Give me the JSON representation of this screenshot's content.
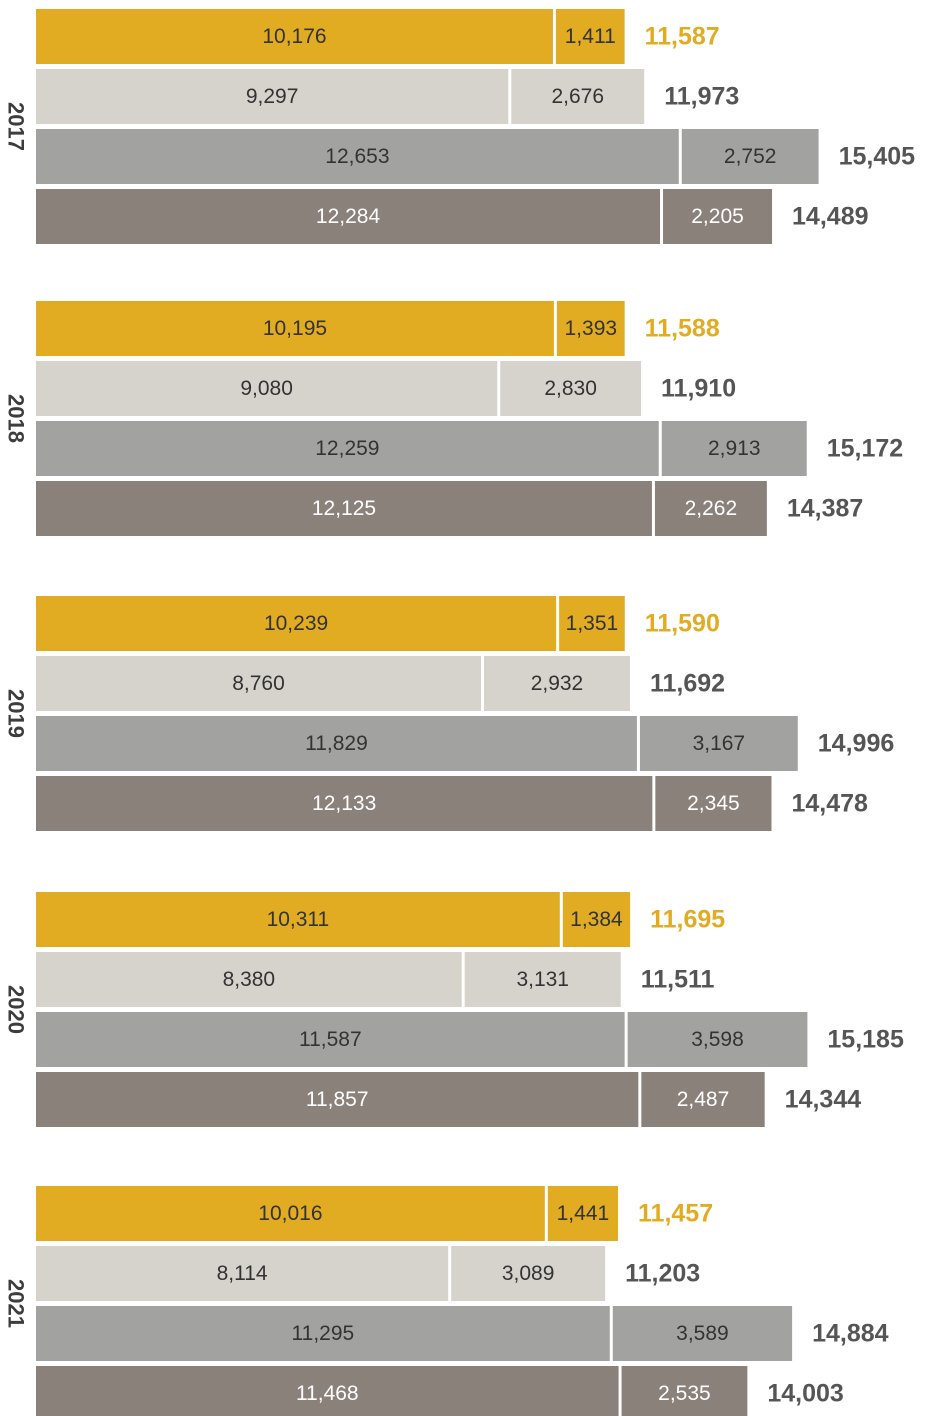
{
  "chart_data": {
    "type": "bar",
    "orientation": "horizontal",
    "stacked": true,
    "xlabel": "",
    "ylabel": "",
    "grid": false,
    "legend": "none",
    "xlim": [
      0,
      15405
    ],
    "groups": [
      {
        "year": "2017",
        "bars": [
          {
            "values": [
              10176,
              1411
            ],
            "labels": [
              "10,176",
              "1,411"
            ],
            "total": "11,587",
            "colors": [
              "#e1ac22",
              "#e1ac22"
            ],
            "text_colors": [
              "#333333",
              "#333333"
            ],
            "total_color": "#e1ac22"
          },
          {
            "values": [
              9297,
              2676
            ],
            "labels": [
              "9,297",
              "2,676"
            ],
            "total": "11,973",
            "colors": [
              "#d6d2cc",
              "#d6d2cc"
            ],
            "text_colors": [
              "#333333",
              "#333333"
            ],
            "total_color": "#555555"
          },
          {
            "values": [
              12653,
              2752
            ],
            "labels": [
              "12,653",
              "2,752"
            ],
            "total": "15,405",
            "colors": [
              "#a2a3a1",
              "#a2a3a1"
            ],
            "text_colors": [
              "#333333",
              "#333333"
            ],
            "total_color": "#555555"
          },
          {
            "values": [
              12284,
              2205
            ],
            "labels": [
              "12,284",
              "2,205"
            ],
            "total": "14,489",
            "colors": [
              "#8b817b",
              "#8b817b"
            ],
            "text_colors": [
              "#ffffff",
              "#ffffff"
            ],
            "total_color": "#555555"
          }
        ]
      },
      {
        "year": "2018",
        "bars": [
          {
            "values": [
              10195,
              1393
            ],
            "labels": [
              "10,195",
              "1,393"
            ],
            "total": "11,588",
            "colors": [
              "#e1ac22",
              "#e1ac22"
            ],
            "text_colors": [
              "#333333",
              "#333333"
            ],
            "total_color": "#e1ac22"
          },
          {
            "values": [
              9080,
              2830
            ],
            "labels": [
              "9,080",
              "2,830"
            ],
            "total": "11,910",
            "colors": [
              "#d6d2cc",
              "#d6d2cc"
            ],
            "text_colors": [
              "#333333",
              "#333333"
            ],
            "total_color": "#555555"
          },
          {
            "values": [
              12259,
              2913
            ],
            "labels": [
              "12,259",
              "2,913"
            ],
            "total": "15,172",
            "colors": [
              "#a2a3a1",
              "#a2a3a1"
            ],
            "text_colors": [
              "#333333",
              "#333333"
            ],
            "total_color": "#555555"
          },
          {
            "values": [
              12125,
              2262
            ],
            "labels": [
              "12,125",
              "2,262"
            ],
            "total": "14,387",
            "colors": [
              "#8b817b",
              "#8b817b"
            ],
            "text_colors": [
              "#ffffff",
              "#ffffff"
            ],
            "total_color": "#555555"
          }
        ]
      },
      {
        "year": "2019",
        "bars": [
          {
            "values": [
              10239,
              1351
            ],
            "labels": [
              "10,239",
              "1,351"
            ],
            "total": "11,590",
            "colors": [
              "#e1ac22",
              "#e1ac22"
            ],
            "text_colors": [
              "#333333",
              "#333333"
            ],
            "total_color": "#e1ac22"
          },
          {
            "values": [
              8760,
              2932
            ],
            "labels": [
              "8,760",
              "2,932"
            ],
            "total": "11,692",
            "colors": [
              "#d6d2cc",
              "#d6d2cc"
            ],
            "text_colors": [
              "#333333",
              "#333333"
            ],
            "total_color": "#555555"
          },
          {
            "values": [
              11829,
              3167
            ],
            "labels": [
              "11,829",
              "3,167"
            ],
            "total": "14,996",
            "colors": [
              "#a2a3a1",
              "#a2a3a1"
            ],
            "text_colors": [
              "#333333",
              "#333333"
            ],
            "total_color": "#555555"
          },
          {
            "values": [
              12133,
              2345
            ],
            "labels": [
              "12,133",
              "2,345"
            ],
            "total": "14,478",
            "colors": [
              "#8b817b",
              "#8b817b"
            ],
            "text_colors": [
              "#ffffff",
              "#ffffff"
            ],
            "total_color": "#555555"
          }
        ]
      },
      {
        "year": "2020",
        "bars": [
          {
            "values": [
              10311,
              1384
            ],
            "labels": [
              "10,311",
              "1,384"
            ],
            "total": "11,695",
            "colors": [
              "#e1ac22",
              "#e1ac22"
            ],
            "text_colors": [
              "#333333",
              "#333333"
            ],
            "total_color": "#e1ac22"
          },
          {
            "values": [
              8380,
              3131
            ],
            "labels": [
              "8,380",
              "3,131"
            ],
            "total": "11,511",
            "colors": [
              "#d6d2cc",
              "#d6d2cc"
            ],
            "text_colors": [
              "#333333",
              "#333333"
            ],
            "total_color": "#555555"
          },
          {
            "values": [
              11587,
              3598
            ],
            "labels": [
              "11,587",
              "3,598"
            ],
            "total": "15,185",
            "colors": [
              "#a2a3a1",
              "#a2a3a1"
            ],
            "text_colors": [
              "#333333",
              "#333333"
            ],
            "total_color": "#555555"
          },
          {
            "values": [
              11857,
              2487
            ],
            "labels": [
              "11,857",
              "2,487"
            ],
            "total": "14,344",
            "colors": [
              "#8b817b",
              "#8b817b"
            ],
            "text_colors": [
              "#ffffff",
              "#ffffff"
            ],
            "total_color": "#555555"
          }
        ]
      },
      {
        "year": "2021",
        "bars": [
          {
            "values": [
              10016,
              1441
            ],
            "labels": [
              "10,016",
              "1,441"
            ],
            "total": "11,457",
            "colors": [
              "#e1ac22",
              "#e1ac22"
            ],
            "text_colors": [
              "#333333",
              "#333333"
            ],
            "total_color": "#e1ac22"
          },
          {
            "values": [
              8114,
              3089
            ],
            "labels": [
              "8,114",
              "3,089"
            ],
            "total": "11,203",
            "colors": [
              "#d6d2cc",
              "#d6d2cc"
            ],
            "text_colors": [
              "#333333",
              "#333333"
            ],
            "total_color": "#555555"
          },
          {
            "values": [
              11295,
              3589
            ],
            "labels": [
              "11,295",
              "3,589"
            ],
            "total": "14,884",
            "colors": [
              "#a2a3a1",
              "#a2a3a1"
            ],
            "text_colors": [
              "#333333",
              "#333333"
            ],
            "total_color": "#555555"
          },
          {
            "values": [
              11468,
              2535
            ],
            "labels": [
              "11,468",
              "2,535"
            ],
            "total": "14,003",
            "colors": [
              "#8b817b",
              "#8b817b"
            ],
            "text_colors": [
              "#ffffff",
              "#ffffff"
            ],
            "total_color": "#555555"
          }
        ]
      }
    ]
  }
}
